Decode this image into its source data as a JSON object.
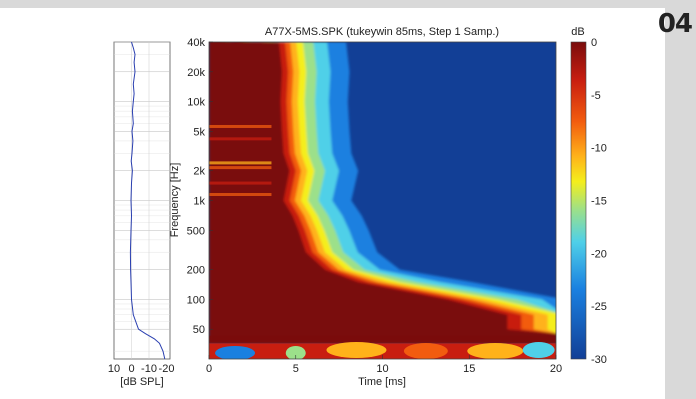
{
  "page": {
    "badge": "04"
  },
  "chart_data": [
    {
      "type": "line",
      "subplot": "frequency-response",
      "x_ticks": [
        "10",
        "0",
        "-10",
        "-20"
      ],
      "xlabel": "[dB SPL]",
      "xlim": [
        10,
        -22
      ],
      "line_color": "#2a3fb0",
      "description": "Axial frequency response curve sharing the frequency axis of the spectrogram",
      "points": [
        {
          "f": 40000,
          "db": 0
        },
        {
          "f": 35000,
          "db": -1
        },
        {
          "f": 30000,
          "db": -2
        },
        {
          "f": 25000,
          "db": -1.5
        },
        {
          "f": 20000,
          "db": -2
        },
        {
          "f": 15000,
          "db": -1
        },
        {
          "f": 12000,
          "db": -1.5
        },
        {
          "f": 10000,
          "db": -1
        },
        {
          "f": 8000,
          "db": -0.5
        },
        {
          "f": 6000,
          "db": -1
        },
        {
          "f": 5000,
          "db": -0.3
        },
        {
          "f": 4000,
          "db": -0.8
        },
        {
          "f": 3000,
          "db": -0.3
        },
        {
          "f": 2500,
          "db": 0.2
        },
        {
          "f": 2000,
          "db": -0.5
        },
        {
          "f": 1500,
          "db": 0
        },
        {
          "f": 1000,
          "db": 0.3
        },
        {
          "f": 700,
          "db": 0
        },
        {
          "f": 500,
          "db": 0.3
        },
        {
          "f": 300,
          "db": 0.6
        },
        {
          "f": 200,
          "db": 0.5
        },
        {
          "f": 150,
          "db": 0.3
        },
        {
          "f": 100,
          "db": 0
        },
        {
          "f": 70,
          "db": -1
        },
        {
          "f": 50,
          "db": -4
        },
        {
          "f": 45,
          "db": -8
        },
        {
          "f": 40,
          "db": -13
        },
        {
          "f": 36,
          "db": -16
        },
        {
          "f": 30,
          "db": -18
        },
        {
          "f": 25,
          "db": -19
        }
      ]
    },
    {
      "type": "heatmap",
      "subplot": "cumulative-spectral-decay",
      "title": "A77X-5MS.SPK (tukeywin 85ms, Step 1 Samp.)",
      "xlabel": "Time [ms]",
      "ylabel": "Frequency [Hz]",
      "xlim": [
        0,
        20
      ],
      "ylim": [
        25,
        40000
      ],
      "yscale": "log",
      "x_ticks": [
        0,
        5,
        10,
        15,
        20
      ],
      "y_ticks": [
        {
          "value": 40000,
          "label": "40k"
        },
        {
          "value": 20000,
          "label": "20k"
        },
        {
          "value": 10000,
          "label": "10k"
        },
        {
          "value": 5000,
          "label": "5k"
        },
        {
          "value": 2000,
          "label": "2k"
        },
        {
          "value": 1000,
          "label": "1k"
        },
        {
          "value": 500,
          "label": "500"
        },
        {
          "value": 200,
          "label": "200"
        },
        {
          "value": 100,
          "label": "100"
        },
        {
          "value": 50,
          "label": "50"
        }
      ],
      "colorbar": {
        "label": "dB",
        "range": [
          -30,
          0
        ],
        "ticks": [
          0,
          -5,
          -10,
          -15,
          -20,
          -25,
          -30
        ],
        "colormap": [
          "#7a0c0c",
          "#c81e10",
          "#f25c0f",
          "#ffb21a",
          "#f4ee1c",
          "#9ce08a",
          "#4fd0e8",
          "#1a80e0",
          "#123f96"
        ]
      },
      "decay_front_ms": [
        {
          "f": 40000,
          "t": 4.7
        },
        {
          "f": 20000,
          "t": 4.9
        },
        {
          "f": 10000,
          "t": 4.8
        },
        {
          "f": 5000,
          "t": 4.9
        },
        {
          "f": 3000,
          "t": 5.0
        },
        {
          "f": 2000,
          "t": 5.4
        },
        {
          "f": 1000,
          "t": 5.0
        },
        {
          "f": 700,
          "t": 5.6
        },
        {
          "f": 500,
          "t": 6.0
        },
        {
          "f": 300,
          "t": 6.5
        },
        {
          "f": 200,
          "t": 7.8
        },
        {
          "f": 150,
          "t": 10.0
        },
        {
          "f": 100,
          "t": 16.0
        },
        {
          "f": 70,
          "t": 20.0
        },
        {
          "f": 50,
          "t": 20.0
        }
      ],
      "floor_db": -30
    }
  ]
}
